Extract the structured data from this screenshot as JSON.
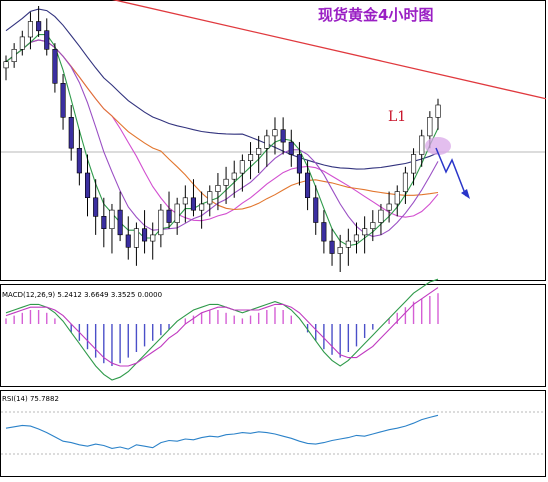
{
  "title": "现货黄金4小时图",
  "trendline_label": "L1",
  "colors": {
    "bull_candle": "#ffffff",
    "bear_candle": "#3b2fa0",
    "trendline": "#e0393e",
    "ma_blue": "#32337e",
    "ma_magenta": "#d24fd0",
    "ma_orange": "#e2762e",
    "ma_green": "#2f9a4a",
    "ma_violet": "#9a4fc4",
    "macd_hist": "#d55fd5",
    "macd_hist_neg": "#4a4fc8",
    "macd_line": "#2f9a4a",
    "macd_signal": "#c03ac0",
    "rsi_line": "#2b82c9",
    "arrow": "#2a35c9",
    "highlight": "#d9a8e8"
  },
  "chart_data": [
    {
      "type": "candlestick",
      "panel": "price",
      "title": "现货黄金4小时图",
      "annotation": "L1",
      "candles": [
        [
          100,
          104,
          96,
          102
        ],
        [
          102,
          108,
          100,
          106
        ],
        [
          106,
          112,
          104,
          110
        ],
        [
          110,
          118,
          106,
          115
        ],
        [
          115,
          120,
          110,
          112
        ],
        [
          112,
          116,
          104,
          106
        ],
        [
          106,
          108,
          92,
          95
        ],
        [
          95,
          98,
          80,
          84
        ],
        [
          84,
          88,
          70,
          74
        ],
        [
          74,
          80,
          62,
          66
        ],
        [
          66,
          72,
          52,
          58
        ],
        [
          58,
          64,
          46,
          52
        ],
        [
          52,
          58,
          42,
          48
        ],
        [
          48,
          56,
          40,
          54
        ],
        [
          54,
          60,
          44,
          46
        ],
        [
          46,
          52,
          38,
          42
        ],
        [
          42,
          50,
          36,
          48
        ],
        [
          48,
          54,
          40,
          44
        ],
        [
          44,
          50,
          38,
          46
        ],
        [
          46,
          56,
          42,
          54
        ],
        [
          54,
          60,
          48,
          50
        ],
        [
          50,
          58,
          46,
          56
        ],
        [
          56,
          62,
          50,
          58
        ],
        [
          58,
          64,
          52,
          54
        ],
        [
          54,
          60,
          48,
          56
        ],
        [
          56,
          62,
          52,
          60
        ],
        [
          60,
          66,
          54,
          62
        ],
        [
          62,
          68,
          56,
          64
        ],
        [
          64,
          70,
          58,
          66
        ],
        [
          66,
          72,
          60,
          70
        ],
        [
          70,
          76,
          64,
          72
        ],
        [
          72,
          78,
          66,
          74
        ],
        [
          74,
          80,
          68,
          78
        ],
        [
          78,
          84,
          72,
          80
        ],
        [
          80,
          84,
          72,
          76
        ],
        [
          76,
          80,
          68,
          72
        ],
        [
          72,
          76,
          62,
          66
        ],
        [
          66,
          70,
          54,
          58
        ],
        [
          58,
          62,
          46,
          50
        ],
        [
          50,
          54,
          40,
          44
        ],
        [
          44,
          48,
          36,
          40
        ],
        [
          40,
          46,
          34,
          42
        ],
        [
          42,
          48,
          36,
          44
        ],
        [
          44,
          50,
          40,
          46
        ],
        [
          46,
          52,
          40,
          48
        ],
        [
          48,
          54,
          44,
          50
        ],
        [
          50,
          56,
          46,
          54
        ],
        [
          54,
          60,
          50,
          56
        ],
        [
          56,
          62,
          52,
          60
        ],
        [
          60,
          68,
          56,
          66
        ],
        [
          66,
          74,
          62,
          72
        ],
        [
          72,
          80,
          68,
          78
        ],
        [
          78,
          86,
          74,
          84
        ],
        [
          84,
          90,
          80,
          88
        ]
      ],
      "trendline": {
        "from": [
          0,
          130
        ],
        "to": [
          53,
          96
        ]
      },
      "moving_averages": [
        "ma_blue",
        "ma_magenta",
        "ma_orange",
        "ma_green",
        "ma_violet"
      ]
    },
    {
      "type": "bar",
      "panel": "macd",
      "label": "MACD(12,26,9) 5.2412 3.6649 3.3525 0.0000",
      "histogram": [
        2,
        3,
        4,
        5,
        5,
        4,
        2,
        0,
        -3,
        -6,
        -9,
        -12,
        -14,
        -15,
        -14,
        -12,
        -10,
        -8,
        -6,
        -4,
        -2,
        0,
        2,
        3,
        4,
        5,
        5,
        4,
        3,
        2,
        3,
        4,
        5,
        6,
        5,
        3,
        0,
        -3,
        -6,
        -9,
        -11,
        -12,
        -10,
        -8,
        -5,
        -2,
        0,
        2,
        4,
        6,
        8,
        9,
        10,
        11
      ],
      "macd_line": [
        4,
        5,
        6,
        7,
        7,
        6,
        4,
        1,
        -3,
        -7,
        -11,
        -15,
        -18,
        -20,
        -19,
        -17,
        -14,
        -11,
        -8,
        -5,
        -2,
        1,
        3,
        5,
        6,
        7,
        7,
        6,
        5,
        4,
        5,
        6,
        7,
        8,
        7,
        5,
        2,
        -2,
        -6,
        -10,
        -13,
        -15,
        -13,
        -10,
        -7,
        -4,
        -1,
        2,
        5,
        8,
        11,
        13,
        15,
        16
      ],
      "signal_line": [
        3,
        4,
        5,
        6,
        6,
        6,
        5,
        3,
        0,
        -3,
        -6,
        -9,
        -12,
        -14,
        -15,
        -15,
        -14,
        -12,
        -10,
        -8,
        -5,
        -3,
        0,
        2,
        4,
        5,
        6,
        6,
        5,
        5,
        5,
        5,
        6,
        7,
        7,
        6,
        4,
        1,
        -2,
        -5,
        -8,
        -11,
        -12,
        -12,
        -10,
        -8,
        -5,
        -2,
        1,
        4,
        7,
        9,
        11,
        13
      ]
    },
    {
      "type": "line",
      "panel": "rsi",
      "label": "RSI(14) 75.7882",
      "ylim": [
        0,
        100
      ],
      "values": [
        58,
        60,
        62,
        61,
        57,
        52,
        46,
        40,
        38,
        35,
        33,
        36,
        34,
        30,
        32,
        29,
        35,
        33,
        31,
        38,
        41,
        40,
        43,
        42,
        45,
        47,
        46,
        49,
        50,
        52,
        51,
        53,
        52,
        50,
        47,
        44,
        40,
        37,
        36,
        38,
        41,
        43,
        45,
        48,
        47,
        50,
        53,
        56,
        58,
        61,
        65,
        70,
        73,
        76
      ]
    }
  ]
}
